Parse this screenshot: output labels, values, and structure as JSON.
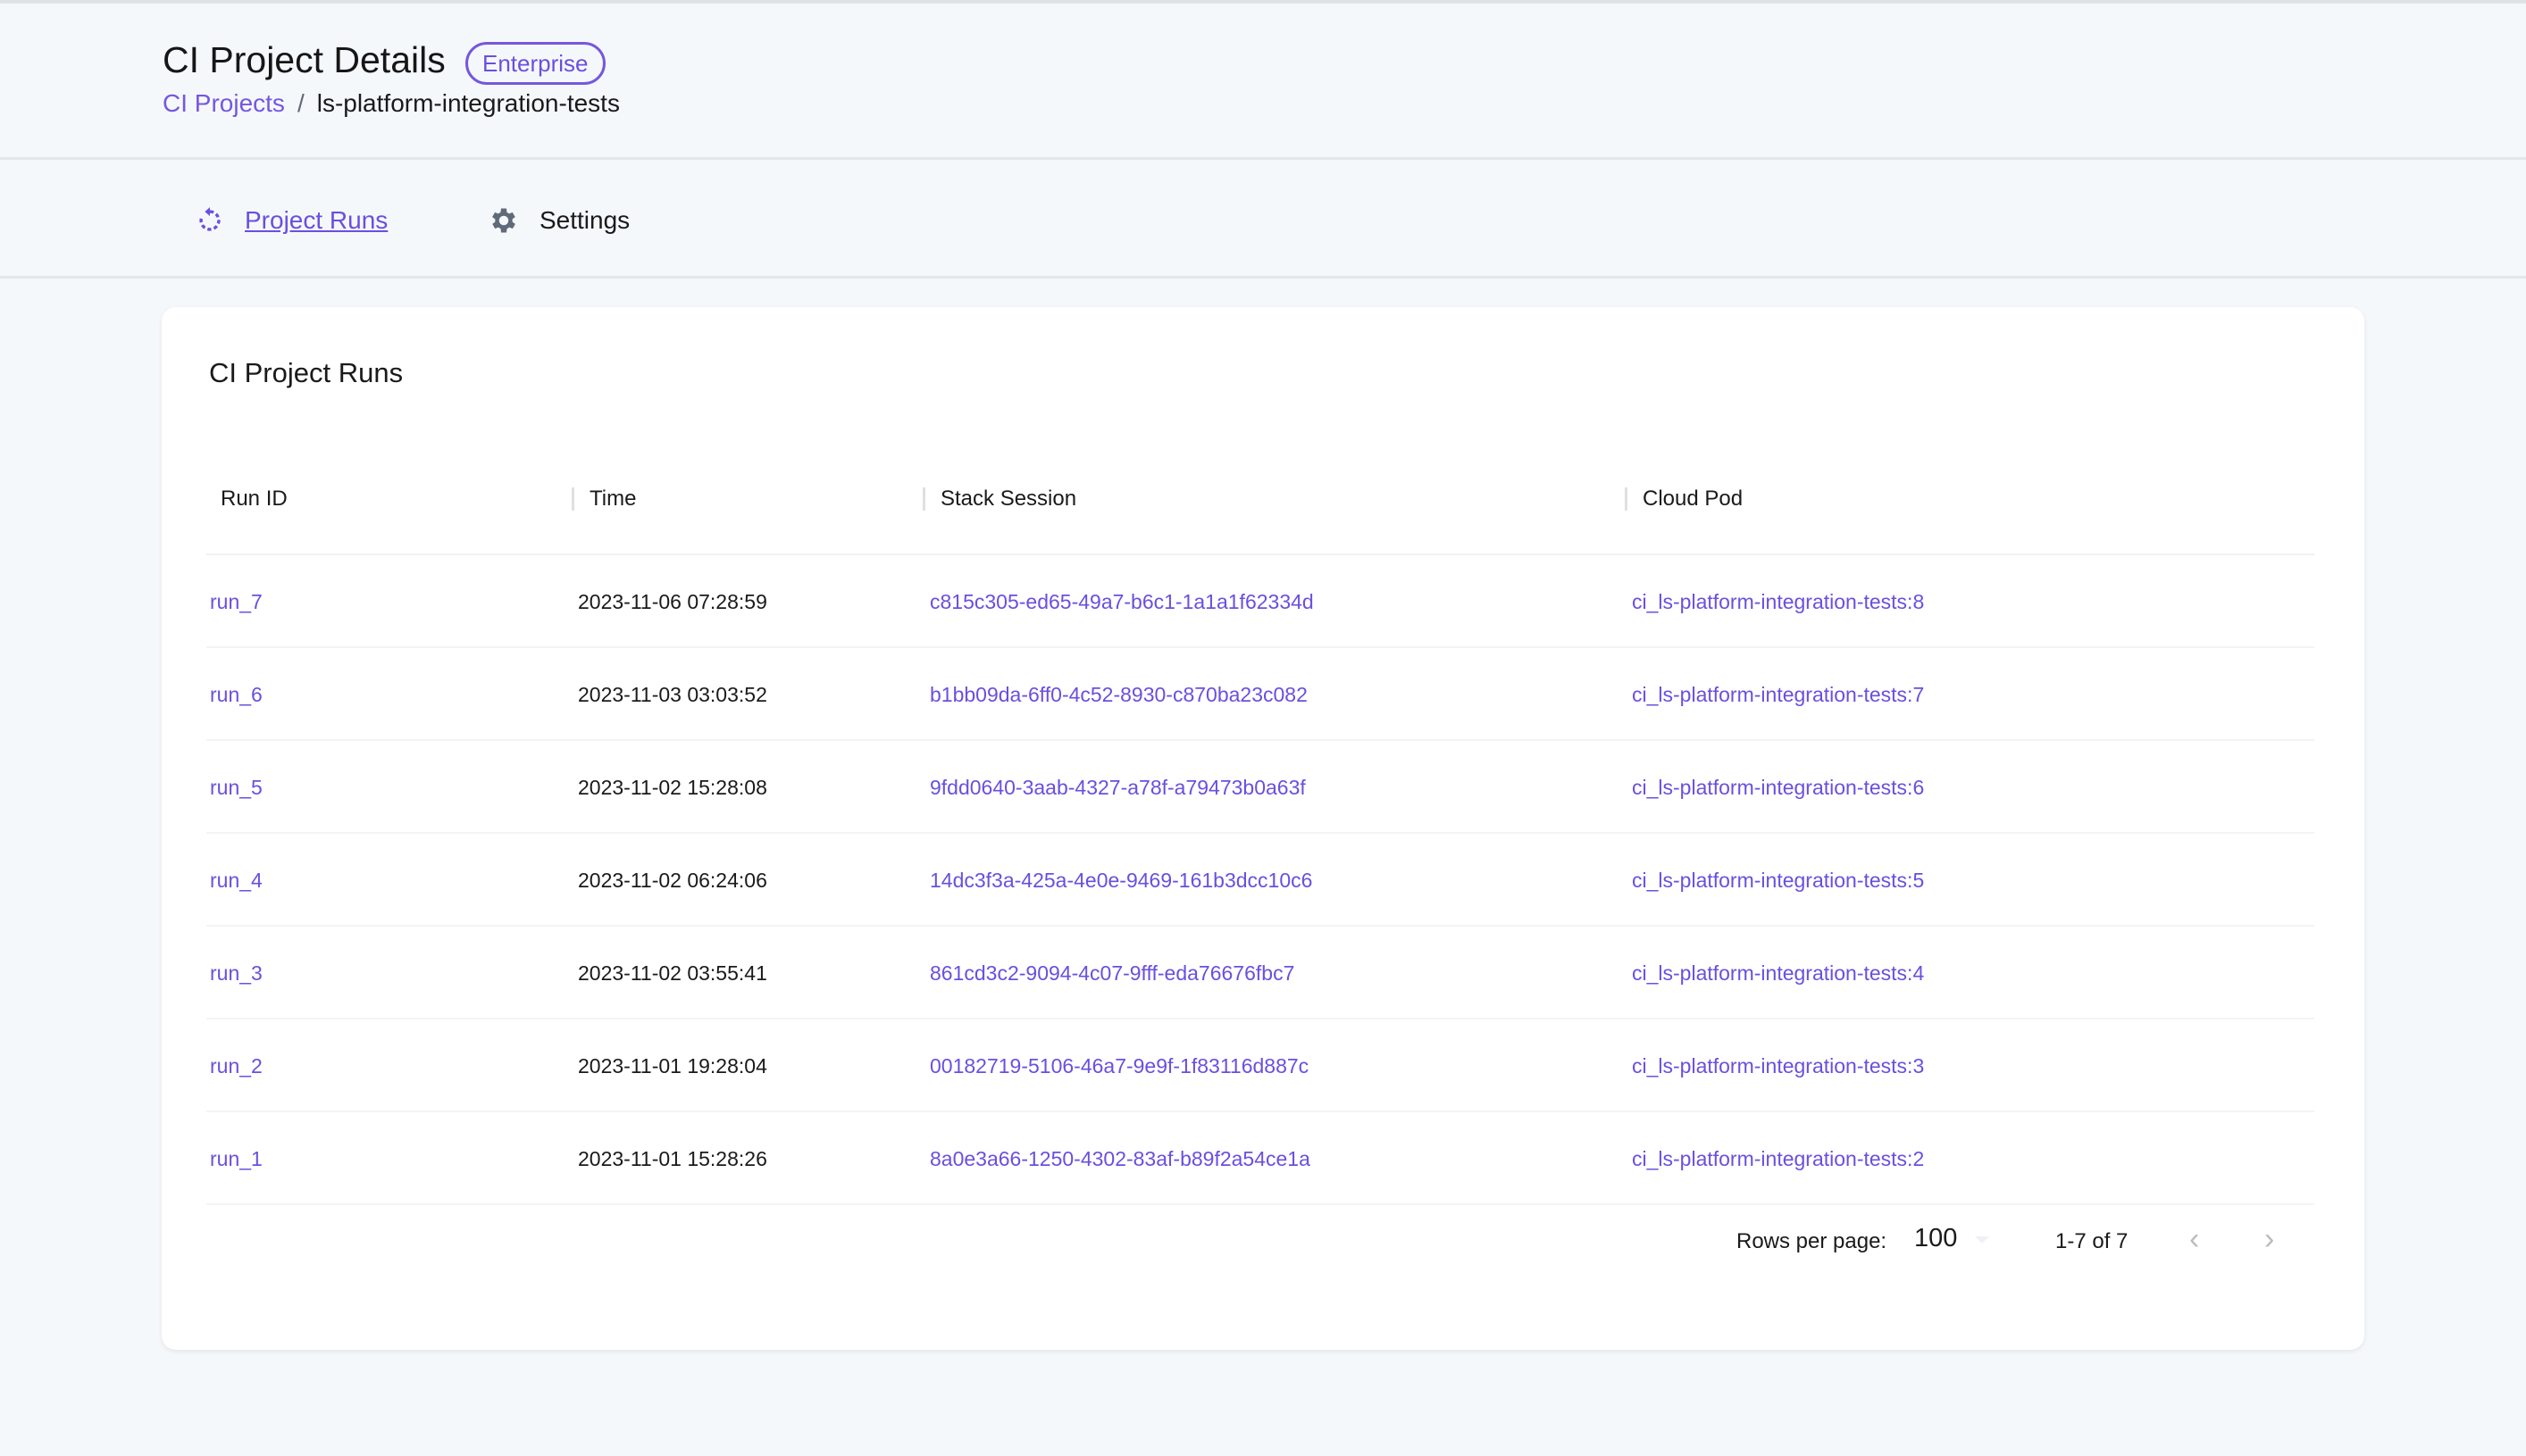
{
  "header": {
    "title": "CI Project Details",
    "badge": "Enterprise",
    "breadcrumb": {
      "parent": "CI Projects",
      "separator": "/",
      "current": "ls-platform-integration-tests"
    }
  },
  "nav": {
    "tabs": [
      {
        "label": "Project Runs",
        "icon": "restart-icon",
        "active": true
      },
      {
        "label": "Settings",
        "icon": "gear-icon",
        "active": false
      }
    ]
  },
  "card": {
    "title": "CI Project Runs",
    "columns": [
      "Run ID",
      "Time",
      "Stack Session",
      "Cloud Pod"
    ],
    "rows": [
      {
        "run_id": "run_7",
        "time": "2023-11-06 07:28:59",
        "session": "c815c305-ed65-49a7-b6c1-1a1a1f62334d",
        "pod": "ci_ls-platform-integration-tests:8"
      },
      {
        "run_id": "run_6",
        "time": "2023-11-03 03:03:52",
        "session": "b1bb09da-6ff0-4c52-8930-c870ba23c082",
        "pod": "ci_ls-platform-integration-tests:7"
      },
      {
        "run_id": "run_5",
        "time": "2023-11-02 15:28:08",
        "session": "9fdd0640-3aab-4327-a78f-a79473b0a63f",
        "pod": "ci_ls-platform-integration-tests:6"
      },
      {
        "run_id": "run_4",
        "time": "2023-11-02 06:24:06",
        "session": "14dc3f3a-425a-4e0e-9469-161b3dcc10c6",
        "pod": "ci_ls-platform-integration-tests:5"
      },
      {
        "run_id": "run_3",
        "time": "2023-11-02 03:55:41",
        "session": "861cd3c2-9094-4c07-9fff-eda76676fbc7",
        "pod": "ci_ls-platform-integration-tests:4"
      },
      {
        "run_id": "run_2",
        "time": "2023-11-01 19:28:04",
        "session": "00182719-5106-46a7-9e9f-1f83116d887c",
        "pod": "ci_ls-platform-integration-tests:3"
      },
      {
        "run_id": "run_1",
        "time": "2023-11-01 15:28:26",
        "session": "8a0e3a66-1250-4302-83af-b89f2a54ce1a",
        "pod": "ci_ls-platform-integration-tests:2"
      }
    ],
    "pagination": {
      "rows_per_page_label": "Rows per page:",
      "rows_per_page": "100",
      "range": "1-7 of 7",
      "prev": "‹",
      "next": "›"
    }
  },
  "colors": {
    "accent": "#6a4fe0",
    "background": "#f5f8fb"
  }
}
